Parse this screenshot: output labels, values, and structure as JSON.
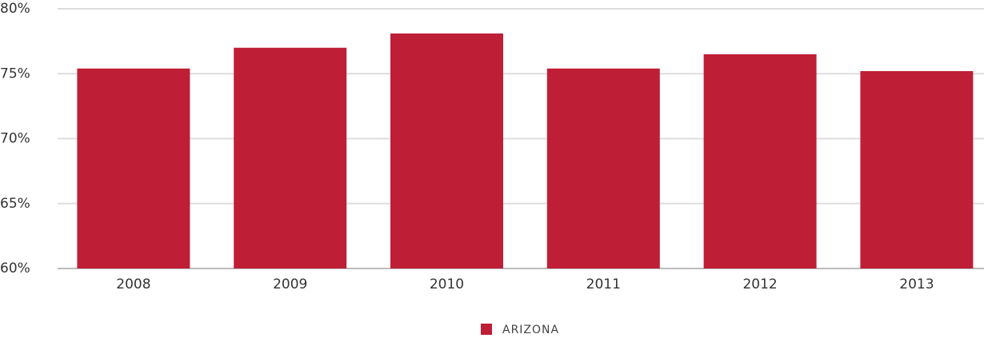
{
  "chart_data": {
    "type": "bar",
    "categories": [
      "2008",
      "2009",
      "2010",
      "2011",
      "2012",
      "2013"
    ],
    "series": [
      {
        "name": "ARIZONA",
        "color": "#be1e36",
        "values": [
          75.4,
          77.0,
          78.1,
          75.4,
          76.5,
          75.2
        ]
      }
    ],
    "ylim": [
      60,
      80
    ],
    "yticks": [
      {
        "value": 60,
        "label": "60%"
      },
      {
        "value": 65,
        "label": "65%"
      },
      {
        "value": 70,
        "label": "70%"
      },
      {
        "value": 75,
        "label": "75%"
      },
      {
        "value": 80,
        "label": "80%"
      }
    ],
    "grid": true,
    "legend": "bottom"
  }
}
